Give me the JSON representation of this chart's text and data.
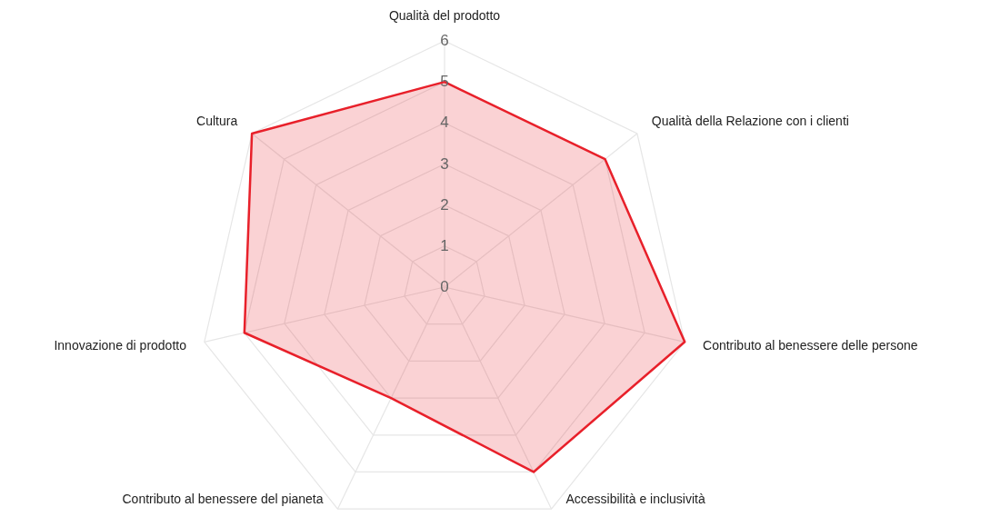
{
  "chart_data": {
    "type": "radar",
    "categories": [
      "Qualità del prodotto",
      "Qualità della Relazione con i clienti",
      "Contributo al benessere delle persone",
      "Accessibilità e inclusività",
      "Contributo al benessere del pianeta",
      "Innovazione di prodotto",
      "Cultura"
    ],
    "series": [
      {
        "color": "#e8202a",
        "values": [
          5,
          5,
          6,
          5,
          3,
          5,
          6
        ]
      }
    ],
    "ylim": [
      0,
      6
    ],
    "yticks": [
      0,
      1,
      2,
      3,
      4,
      5,
      6
    ],
    "grid": true,
    "marker": "none"
  }
}
